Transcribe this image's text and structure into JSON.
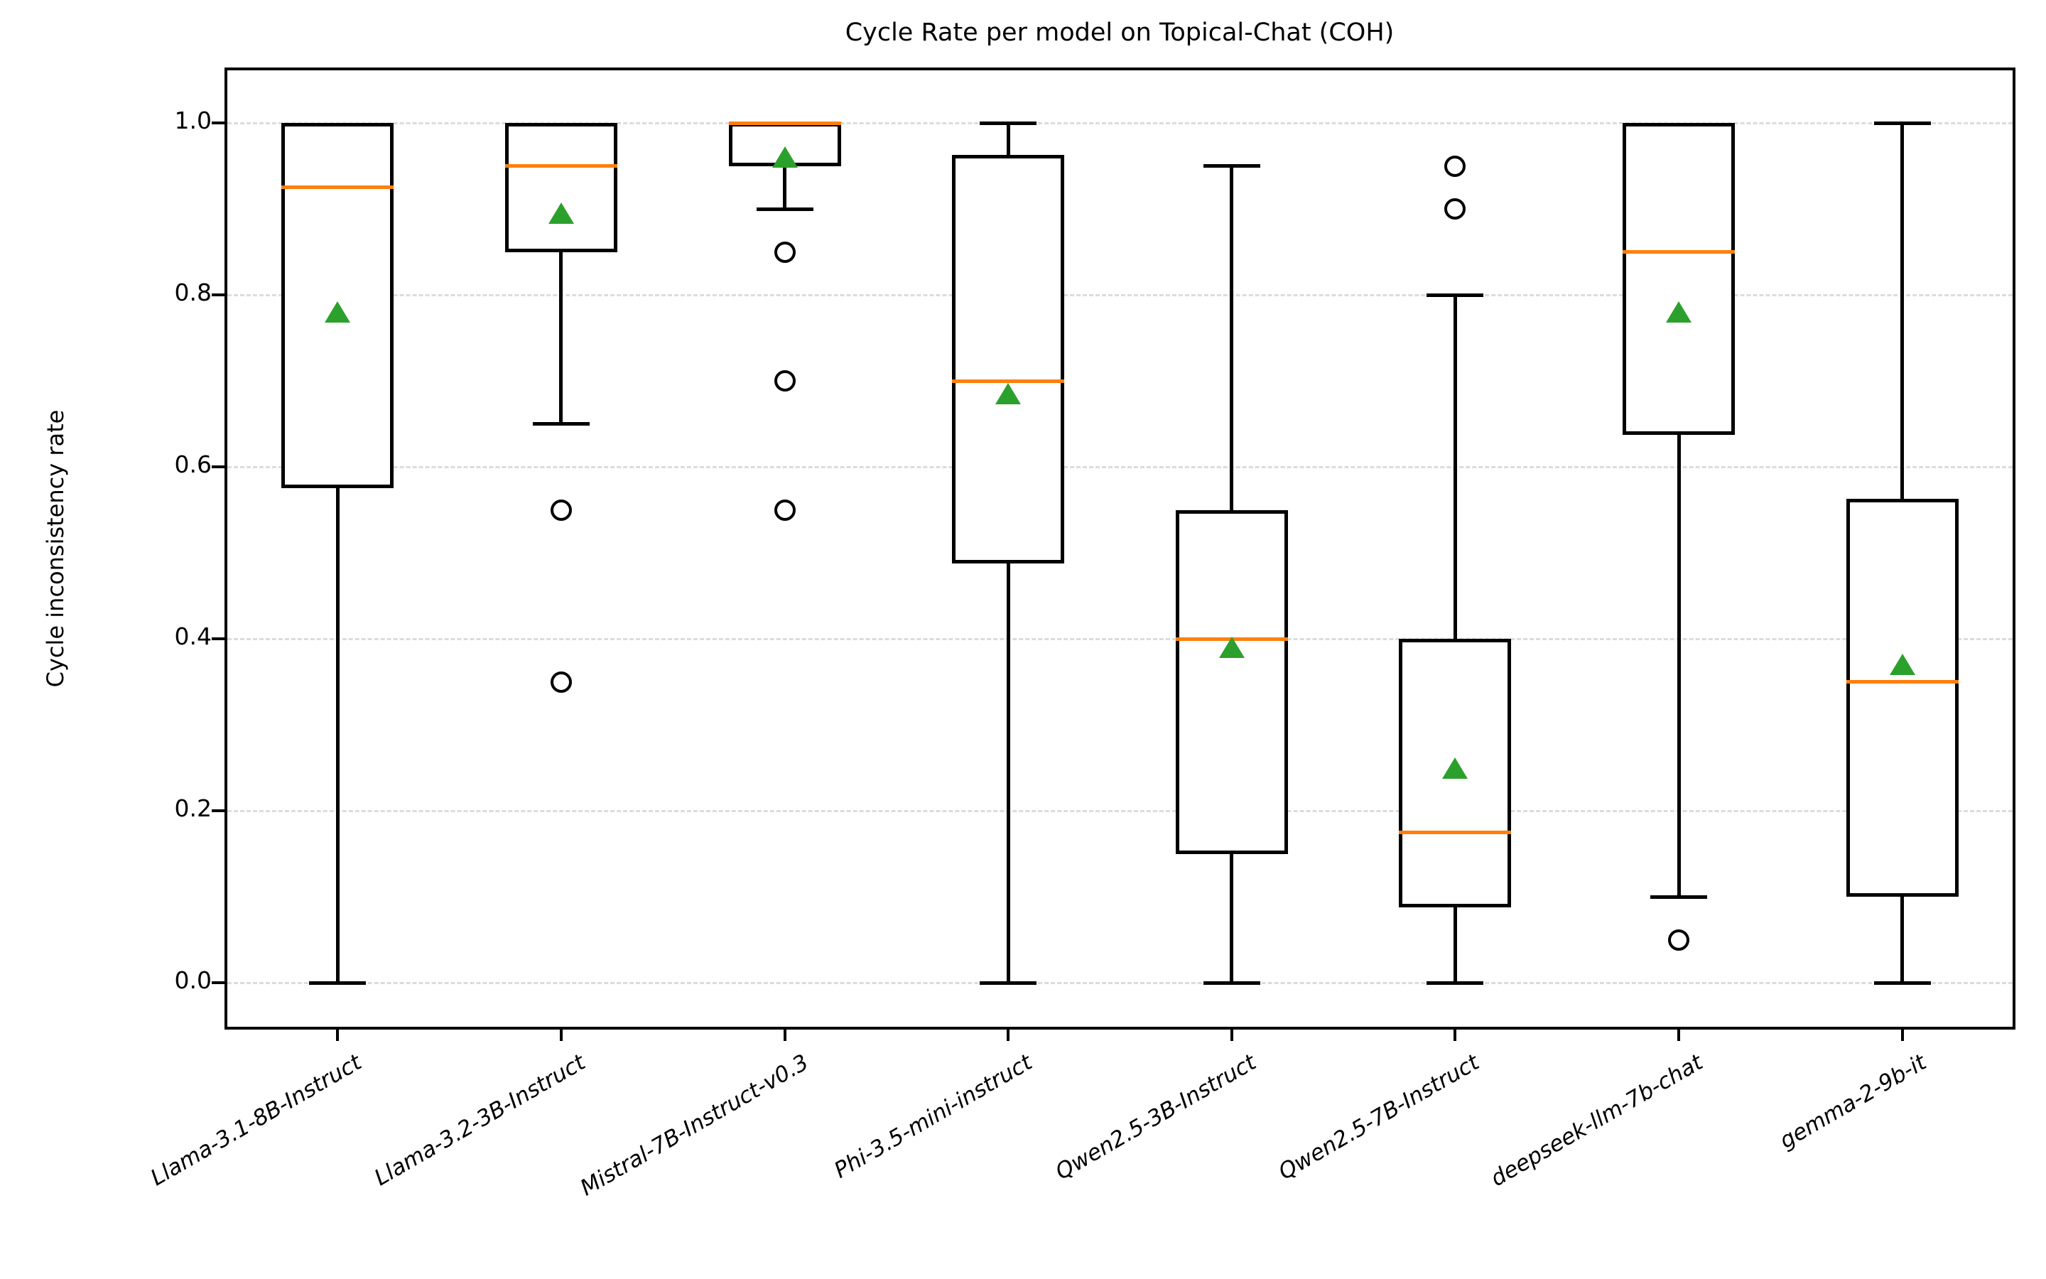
{
  "title": "Cycle Rate per model on Topical-Chat (COH)",
  "ylabel": "Cycle inconsistency rate",
  "colors": {
    "median": "#ff7f0e",
    "mean": "#2ca02c",
    "box_line": "#000000",
    "grid": "#dcdcdc",
    "background": "#ffffff"
  },
  "chart_data": {
    "type": "boxplot",
    "title": "Cycle Rate per model on Topical-Chat (COH)",
    "xlabel": "",
    "ylabel": "Cycle inconsistency rate",
    "ylim": [
      -0.05,
      1.06
    ],
    "yticks": [
      0.0,
      0.2,
      0.4,
      0.6,
      0.8,
      1.0
    ],
    "ytick_labels": [
      "0.0",
      "0.2",
      "0.4",
      "0.6",
      "0.8",
      "1.0"
    ],
    "grid": "horizontal-dashed",
    "legend": "none",
    "mean_marker": "green-triangle-up",
    "median_line": "orange",
    "outlier_marker": "open-circle",
    "categories": [
      "Llama-3.1-8B-Instruct",
      "Llama-3.2-3B-Instruct",
      "Mistral-7B-Instruct-v0.3",
      "Phi-3.5-mini-instruct",
      "Qwen2.5-3B-Instruct",
      "Qwen2.5-7B-Instruct",
      "deepseek-llm-7b-chat",
      "gemma-2-9b-it"
    ],
    "series": [
      {
        "name": "Llama-3.1-8B-Instruct",
        "whisker_low": 0.0,
        "q1": 0.575,
        "median": 0.925,
        "q3": 1.0,
        "whisker_high": 1.0,
        "mean": 0.78,
        "outliers": []
      },
      {
        "name": "Llama-3.2-3B-Instruct",
        "whisker_low": 0.65,
        "q1": 0.85,
        "median": 0.95,
        "q3": 1.0,
        "whisker_high": 1.0,
        "mean": 0.895,
        "outliers": [
          0.55,
          0.35
        ]
      },
      {
        "name": "Mistral-7B-Instruct-v0.3",
        "whisker_low": 0.9,
        "q1": 0.95,
        "median": 1.0,
        "q3": 1.0,
        "whisker_high": 1.0,
        "mean": 0.96,
        "outliers": [
          0.85,
          0.7,
          0.55
        ]
      },
      {
        "name": "Phi-3.5-mini-instruct",
        "whisker_low": 0.0,
        "q1": 0.4875,
        "median": 0.7,
        "q3": 0.9625,
        "whisker_high": 1.0,
        "mean": 0.685,
        "outliers": []
      },
      {
        "name": "Qwen2.5-3B-Instruct",
        "whisker_low": 0.0,
        "q1": 0.15,
        "median": 0.4,
        "q3": 0.55,
        "whisker_high": 0.95,
        "mean": 0.39,
        "outliers": []
      },
      {
        "name": "Qwen2.5-7B-Instruct",
        "whisker_low": 0.0,
        "q1": 0.0875,
        "median": 0.175,
        "q3": 0.4,
        "whisker_high": 0.8,
        "mean": 0.25,
        "outliers": [
          0.95,
          0.9
        ]
      },
      {
        "name": "deepseek-llm-7b-chat",
        "whisker_low": 0.1,
        "q1": 0.6375,
        "median": 0.85,
        "q3": 1.0,
        "whisker_high": 1.0,
        "mean": 0.78,
        "outliers": [
          0.05
        ]
      },
      {
        "name": "gemma-2-9b-it",
        "whisker_low": 0.0,
        "q1": 0.1,
        "median": 0.35,
        "q3": 0.5625,
        "whisker_high": 1.0,
        "mean": 0.37,
        "outliers": []
      }
    ]
  }
}
